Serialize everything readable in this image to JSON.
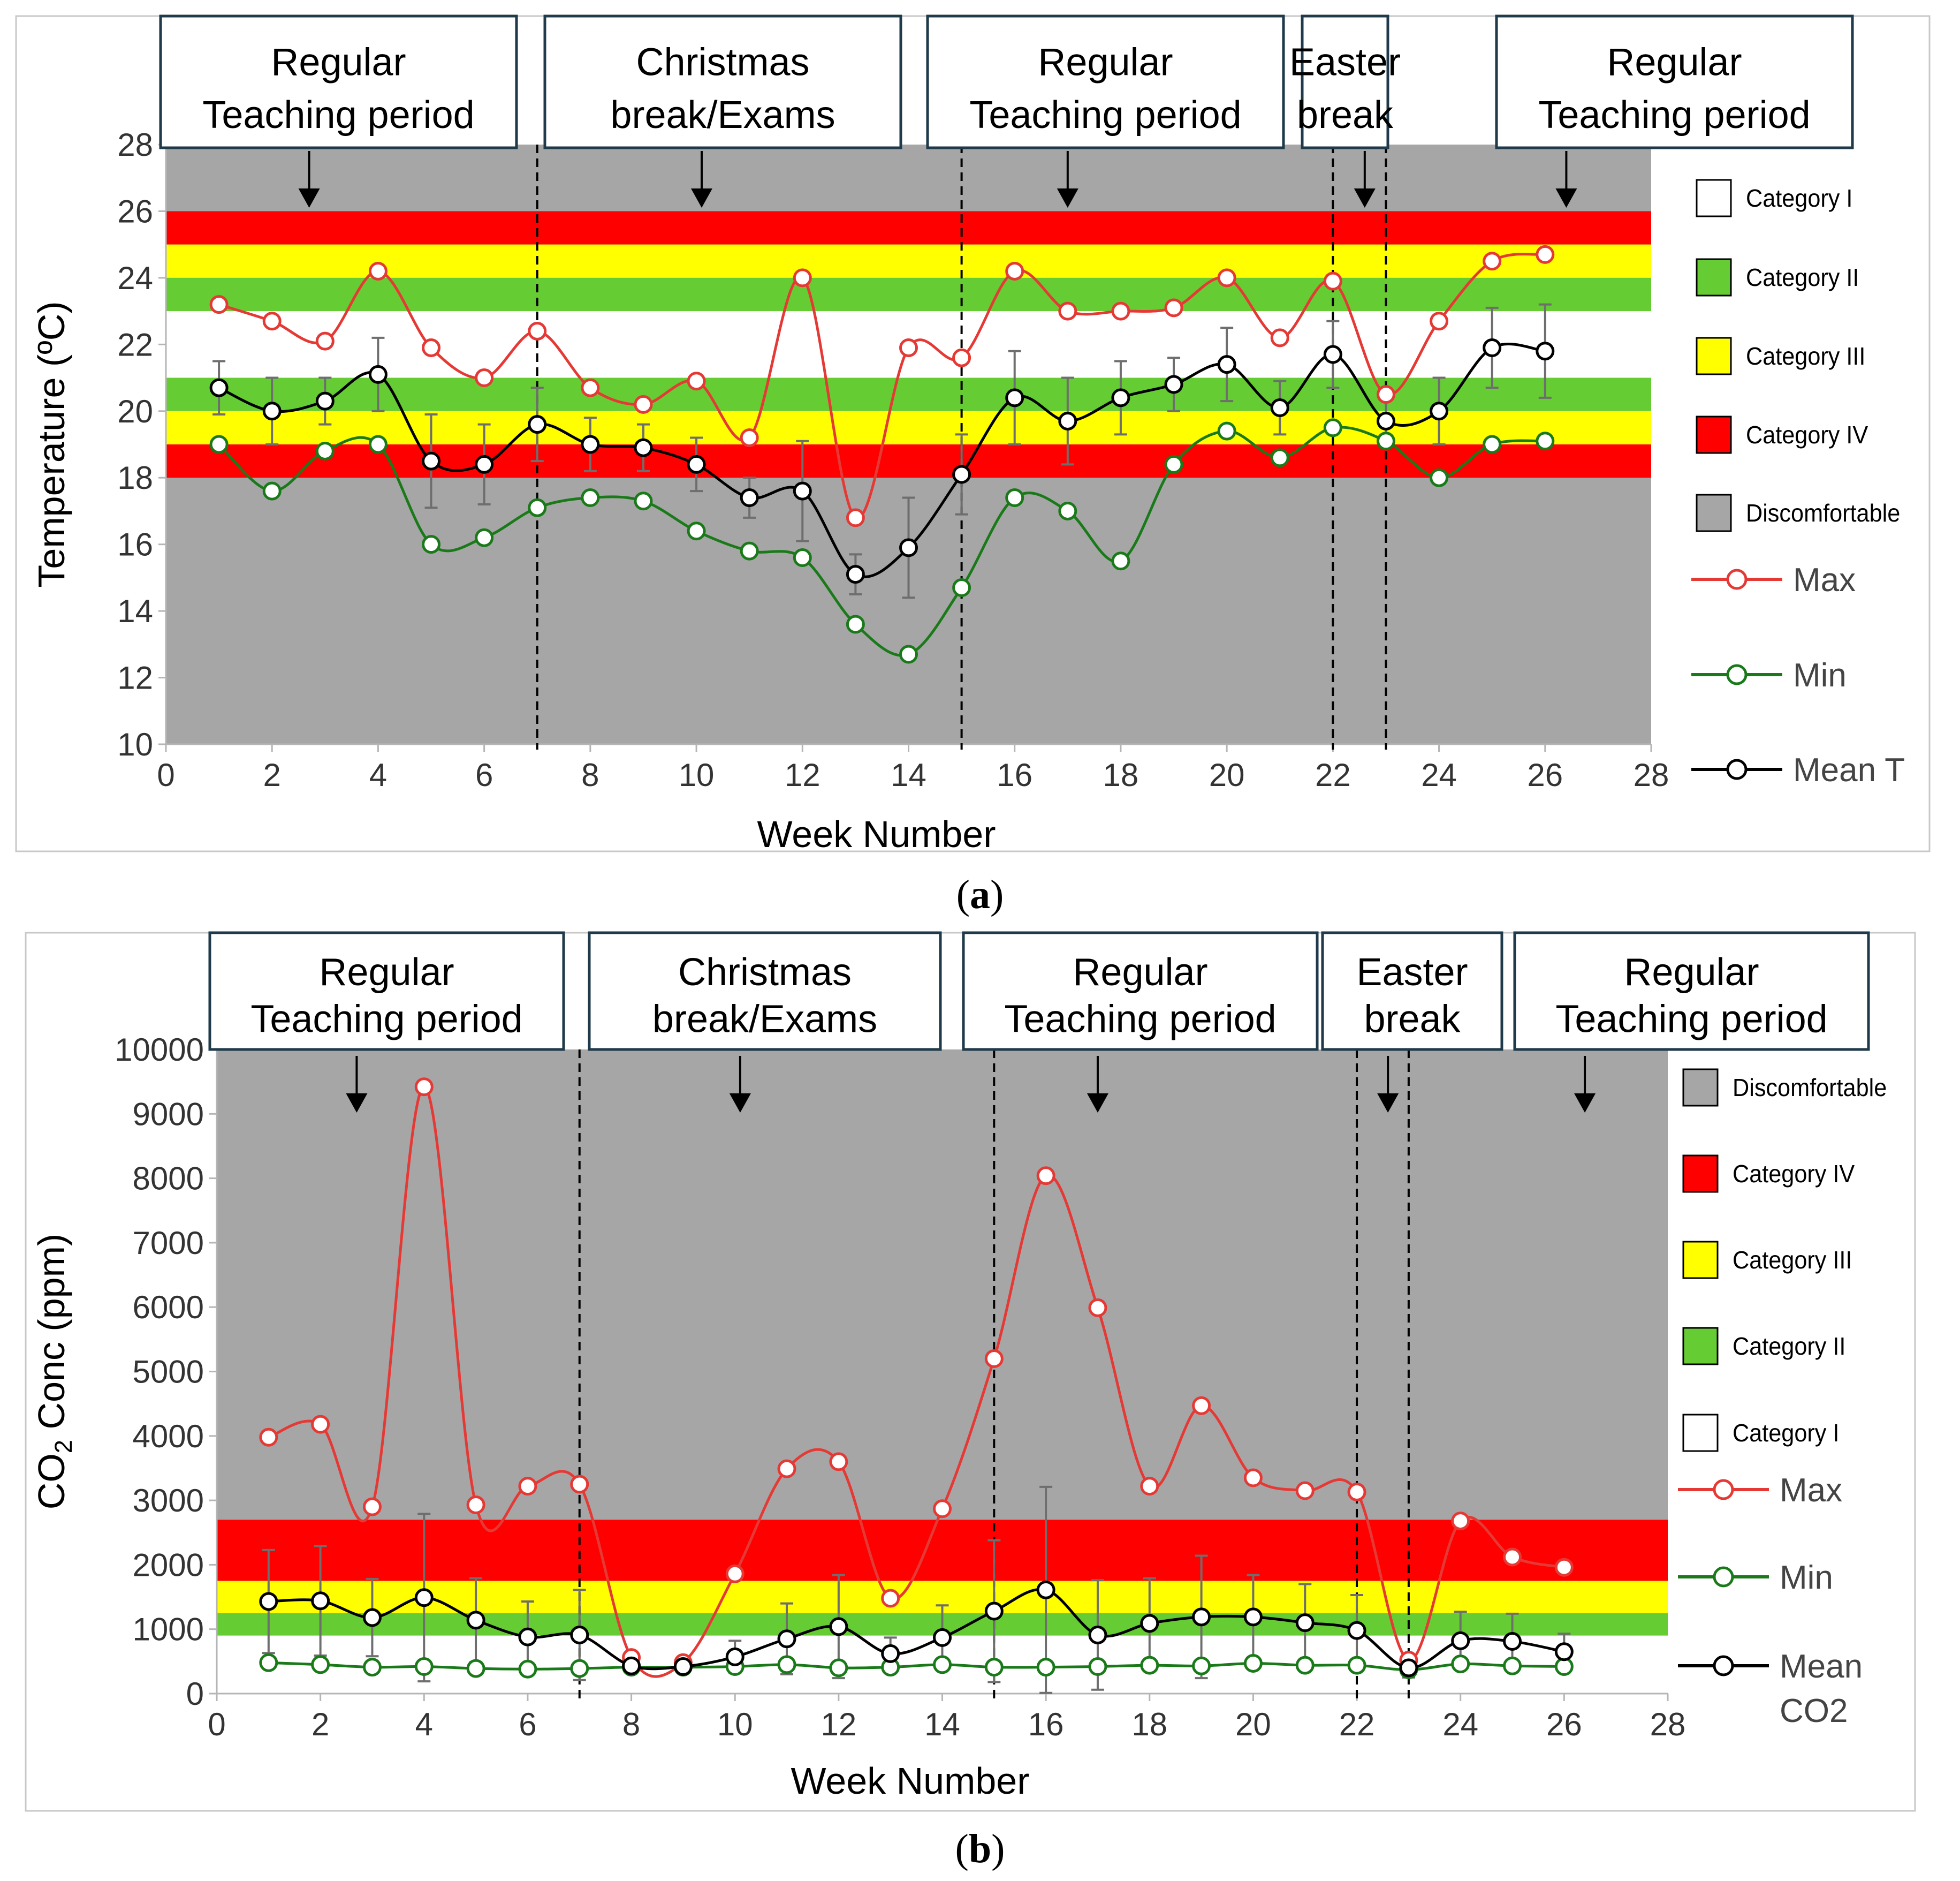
{
  "captions": {
    "a": "a",
    "b": "b"
  },
  "colors": {
    "gray": "#a6a6a6",
    "red": "#ff0000",
    "yellow": "#ffff00",
    "green": "#66cc33",
    "white": "#ffffff",
    "max": "#e53935",
    "min": "#1a7a1a",
    "mean": "#000000",
    "err": "#6e6e6e",
    "box_border": "#1f3a4a"
  },
  "periods": [
    {
      "id": "p1",
      "line1": "Regular",
      "line2": "Teaching period",
      "arrow_week": 2.7
    },
    {
      "id": "p2",
      "line1": "Christmas",
      "line2": "break/Exams",
      "arrow_week": 10.1
    },
    {
      "id": "p3",
      "line1": "Regular",
      "line2": "Teaching period",
      "arrow_week": 17.0
    },
    {
      "id": "p4",
      "line1": "Easter",
      "line2": "break",
      "arrow_week": 22.6
    },
    {
      "id": "p5",
      "line1": "Regular",
      "line2": "Teaching period",
      "arrow_week": 26.4
    }
  ],
  "chart_data": [
    {
      "id": "a",
      "type": "line",
      "title": "",
      "xlabel": "Week Number",
      "ylabel": "Temperature (ºC)",
      "xlim": [
        0,
        28
      ],
      "ylim": [
        10,
        28
      ],
      "xticks": [
        0,
        2,
        4,
        6,
        8,
        10,
        12,
        14,
        16,
        18,
        20,
        22,
        24,
        26,
        28
      ],
      "yticks": [
        10,
        12,
        14,
        16,
        18,
        20,
        22,
        24,
        26,
        28
      ],
      "period_lines": [
        7,
        15,
        22,
        23
      ],
      "bands": [
        {
          "name": "Discomfortable",
          "from": 10,
          "to": 28,
          "color": "#a6a6a6"
        },
        {
          "name": "Category IV",
          "from": 25,
          "to": 26,
          "color": "#ff0000"
        },
        {
          "name": "Category III",
          "from": 24,
          "to": 25,
          "color": "#ffff00"
        },
        {
          "name": "Category II",
          "from": 23,
          "to": 24,
          "color": "#66cc33"
        },
        {
          "name": "Category I",
          "from": 21,
          "to": 23,
          "color": "#ffffff"
        },
        {
          "name": "Category II",
          "from": 20,
          "to": 21,
          "color": "#66cc33"
        },
        {
          "name": "Category III",
          "from": 19,
          "to": 20,
          "color": "#ffff00"
        },
        {
          "name": "Category IV",
          "from": 18,
          "to": 19,
          "color": "#ff0000"
        }
      ],
      "band_legend": [
        "Category I",
        "Category II",
        "Category III",
        "Category IV",
        "Discomfortable"
      ],
      "x": [
        1,
        2,
        3,
        4,
        5,
        6,
        7,
        8,
        9,
        10,
        11,
        12,
        13,
        14,
        15,
        16,
        17,
        18,
        19,
        20,
        21,
        22,
        23,
        24,
        25,
        26
      ],
      "series": [
        {
          "name": "Max",
          "color": "#e53935",
          "values": [
            23.2,
            22.7,
            22.1,
            24.2,
            21.9,
            21.0,
            22.4,
            20.7,
            20.2,
            20.9,
            19.2,
            24.0,
            16.8,
            21.9,
            21.6,
            24.2,
            23.0,
            23.0,
            23.1,
            24.0,
            22.2,
            23.9,
            20.5,
            22.7,
            24.5,
            24.7
          ]
        },
        {
          "name": "Min",
          "color": "#1a7a1a",
          "values": [
            19.0,
            17.6,
            18.8,
            19.0,
            16.0,
            16.2,
            17.1,
            17.4,
            17.3,
            16.4,
            15.8,
            15.6,
            13.6,
            12.7,
            14.7,
            17.4,
            17.0,
            15.5,
            18.4,
            19.4,
            18.6,
            19.5,
            19.1,
            18.0,
            19.0,
            19.1
          ]
        },
        {
          "name": "Mean T",
          "color": "#000000",
          "values": [
            20.7,
            20.0,
            20.3,
            21.1,
            18.5,
            18.4,
            19.6,
            19.0,
            18.9,
            18.4,
            17.4,
            17.6,
            15.1,
            15.9,
            18.1,
            20.4,
            19.7,
            20.4,
            20.8,
            21.4,
            20.1,
            21.7,
            19.7,
            20.0,
            21.9,
            21.8
          ],
          "error": [
            0.8,
            1.0,
            0.7,
            1.1,
            1.4,
            1.2,
            1.1,
            0.8,
            0.7,
            0.8,
            0.6,
            1.5,
            0.6,
            1.5,
            1.2,
            1.4,
            1.3,
            1.1,
            0.8,
            1.1,
            0.8,
            1.0,
            0.7,
            1.0,
            1.2,
            1.4
          ]
        }
      ]
    },
    {
      "id": "b",
      "type": "line",
      "title": "",
      "xlabel": "Week Number",
      "ylabel": "CO2 Conc (ppm)",
      "xlim": [
        0,
        28
      ],
      "ylim": [
        0,
        10000
      ],
      "xticks": [
        0,
        2,
        4,
        6,
        8,
        10,
        12,
        14,
        16,
        18,
        20,
        22,
        24,
        26,
        28
      ],
      "yticks": [
        0,
        1000,
        2000,
        3000,
        4000,
        5000,
        6000,
        7000,
        8000,
        9000,
        10000
      ],
      "period_lines": [
        7,
        15,
        22,
        23
      ],
      "bands": [
        {
          "name": "Discomfortable",
          "from": 2700,
          "to": 10000,
          "color": "#a6a6a6"
        },
        {
          "name": "Category IV",
          "from": 1750,
          "to": 2700,
          "color": "#ff0000"
        },
        {
          "name": "Category III",
          "from": 1250,
          "to": 1750,
          "color": "#ffff00"
        },
        {
          "name": "Category II",
          "from": 900,
          "to": 1250,
          "color": "#66cc33"
        },
        {
          "name": "Category I",
          "from": 0,
          "to": 900,
          "color": "#ffffff"
        }
      ],
      "band_legend": [
        "Discomfortable",
        "Category IV",
        "Category III",
        "Category II",
        "Category I"
      ],
      "x": [
        1,
        2,
        3,
        4,
        5,
        6,
        7,
        8,
        9,
        10,
        11,
        12,
        13,
        14,
        15,
        16,
        17,
        18,
        19,
        20,
        21,
        22,
        23,
        24,
        25,
        26
      ],
      "series": [
        {
          "name": "Max",
          "color": "#e53935",
          "values": [
            3980,
            4180,
            2900,
            9420,
            2930,
            3220,
            3250,
            560,
            480,
            1860,
            3490,
            3600,
            1480,
            2870,
            5200,
            8040,
            5990,
            3220,
            4470,
            3350,
            3150,
            3130,
            520,
            2680,
            2120,
            1960
          ]
        },
        {
          "name": "Min",
          "color": "#1a7a1a",
          "values": [
            480,
            450,
            410,
            420,
            390,
            380,
            390,
            410,
            410,
            420,
            450,
            400,
            410,
            450,
            410,
            410,
            420,
            440,
            430,
            470,
            440,
            440,
            370,
            460,
            430,
            420
          ]
        },
        {
          "name": "Mean CO2",
          "color": "#000000",
          "values": [
            1430,
            1440,
            1180,
            1490,
            1140,
            880,
            910,
            430,
            420,
            570,
            850,
            1040,
            620,
            870,
            1280,
            1610,
            910,
            1090,
            1190,
            1190,
            1100,
            980,
            400,
            820,
            810,
            650
          ],
          "error": [
            800,
            850,
            600,
            1300,
            650,
            550,
            700,
            100,
            100,
            250,
            550,
            800,
            250,
            500,
            1100,
            1600,
            850,
            700,
            950,
            650,
            600,
            550,
            150,
            450,
            430,
            280
          ]
        }
      ]
    }
  ]
}
